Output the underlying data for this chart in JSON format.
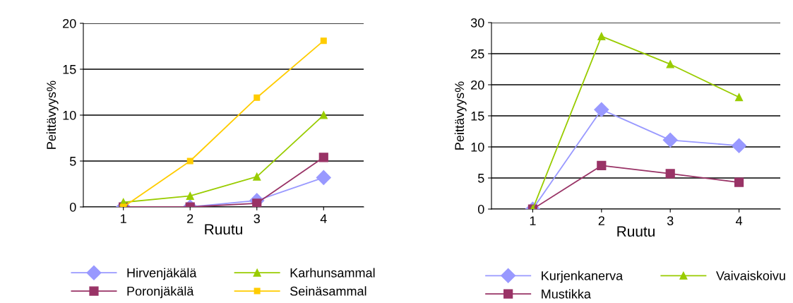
{
  "chart_data": [
    {
      "type": "line",
      "xlabel": "Ruutu",
      "ylabel": "Peittävyys%",
      "categories": [
        "1",
        "2",
        "3",
        "4"
      ],
      "ylim": [
        0,
        20
      ],
      "yticks": [
        0,
        5,
        10,
        15,
        20
      ],
      "grid": "y",
      "legend": "bottom",
      "series": [
        {
          "name": "Hirvenjäkälä",
          "color": "#9999ff",
          "marker": "diamond",
          "values": [
            0,
            0,
            0.7,
            3.2
          ]
        },
        {
          "name": "Poronjäkälä",
          "color": "#993366",
          "marker": "square",
          "values": [
            0,
            0,
            0.4,
            5.4
          ]
        },
        {
          "name": "Karhunsammal",
          "color": "#99cc00",
          "marker": "triangle",
          "values": [
            0.5,
            1.2,
            3.3,
            10
          ]
        },
        {
          "name": "Seinäsammal",
          "color": "#ffcc00",
          "marker": "square",
          "values": [
            0,
            5,
            11.9,
            18.1
          ]
        }
      ]
    },
    {
      "type": "line",
      "xlabel": "Ruutu",
      "ylabel": "Peittävyys%",
      "categories": [
        "1",
        "2",
        "3",
        "4"
      ],
      "ylim": [
        0,
        30
      ],
      "yticks": [
        0,
        5,
        10,
        15,
        20,
        25,
        30
      ],
      "grid": "y",
      "legend": "bottom",
      "series": [
        {
          "name": "Kurjenkanerva",
          "color": "#9999ff",
          "marker": "diamond",
          "values": [
            0,
            16,
            11.1,
            10.2
          ]
        },
        {
          "name": "Mustikka",
          "color": "#993366",
          "marker": "square",
          "values": [
            0,
            7,
            5.7,
            4.3
          ]
        },
        {
          "name": "Vaivaiskoivu",
          "color": "#99cc00",
          "marker": "triangle",
          "values": [
            0,
            27.8,
            23.3,
            18
          ]
        }
      ]
    }
  ]
}
